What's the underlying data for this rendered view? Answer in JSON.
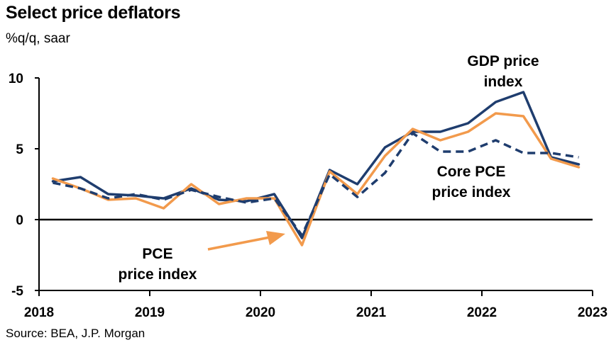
{
  "chart_data": {
    "type": "line",
    "title": "Select price deflators",
    "subtitle": "%q/q, saar",
    "source": "Source: BEA, J.P. Morgan",
    "ylim": [
      -5,
      10
    ],
    "yticks": [
      -5,
      0,
      5,
      10
    ],
    "xlim": [
      2018,
      2023
    ],
    "xticks": [
      2018,
      2019,
      2020,
      2021,
      2022,
      2023
    ],
    "x": [
      2018.125,
      2018.375,
      2018.625,
      2018.875,
      2019.125,
      2019.375,
      2019.625,
      2019.875,
      2020.125,
      2020.375,
      2020.625,
      2020.875,
      2021.125,
      2021.375,
      2021.625,
      2021.875,
      2022.125,
      2022.375,
      2022.625,
      2022.875
    ],
    "series": [
      {
        "key": "gdp",
        "color": "#1f3d6e",
        "dash": false,
        "values": [
          2.7,
          3.0,
          1.8,
          1.7,
          1.5,
          2.2,
          1.4,
          1.3,
          1.8,
          -1.3,
          3.5,
          2.5,
          5.1,
          6.2,
          6.2,
          6.8,
          8.3,
          9.0,
          4.4,
          3.9
        ]
      },
      {
        "key": "pce",
        "color": "#f29a4c",
        "dash": false,
        "values": [
          2.9,
          2.2,
          1.4,
          1.5,
          0.8,
          2.5,
          1.1,
          1.5,
          1.5,
          -1.8,
          3.4,
          1.8,
          4.5,
          6.4,
          5.6,
          6.2,
          7.5,
          7.3,
          4.3,
          3.7
        ]
      },
      {
        "key": "core",
        "color": "#1f3d6e",
        "dash": true,
        "values": [
          2.6,
          2.2,
          1.5,
          1.8,
          1.4,
          2.1,
          1.6,
          1.2,
          1.5,
          -1.1,
          3.2,
          1.6,
          3.3,
          6.1,
          4.8,
          4.8,
          5.6,
          4.7,
          4.7,
          4.4
        ]
      }
    ],
    "annotations": {
      "gdp": [
        "GDP price",
        "index"
      ],
      "core": [
        "Core PCE",
        "price index"
      ],
      "pce": [
        "PCE",
        "price index"
      ]
    }
  }
}
